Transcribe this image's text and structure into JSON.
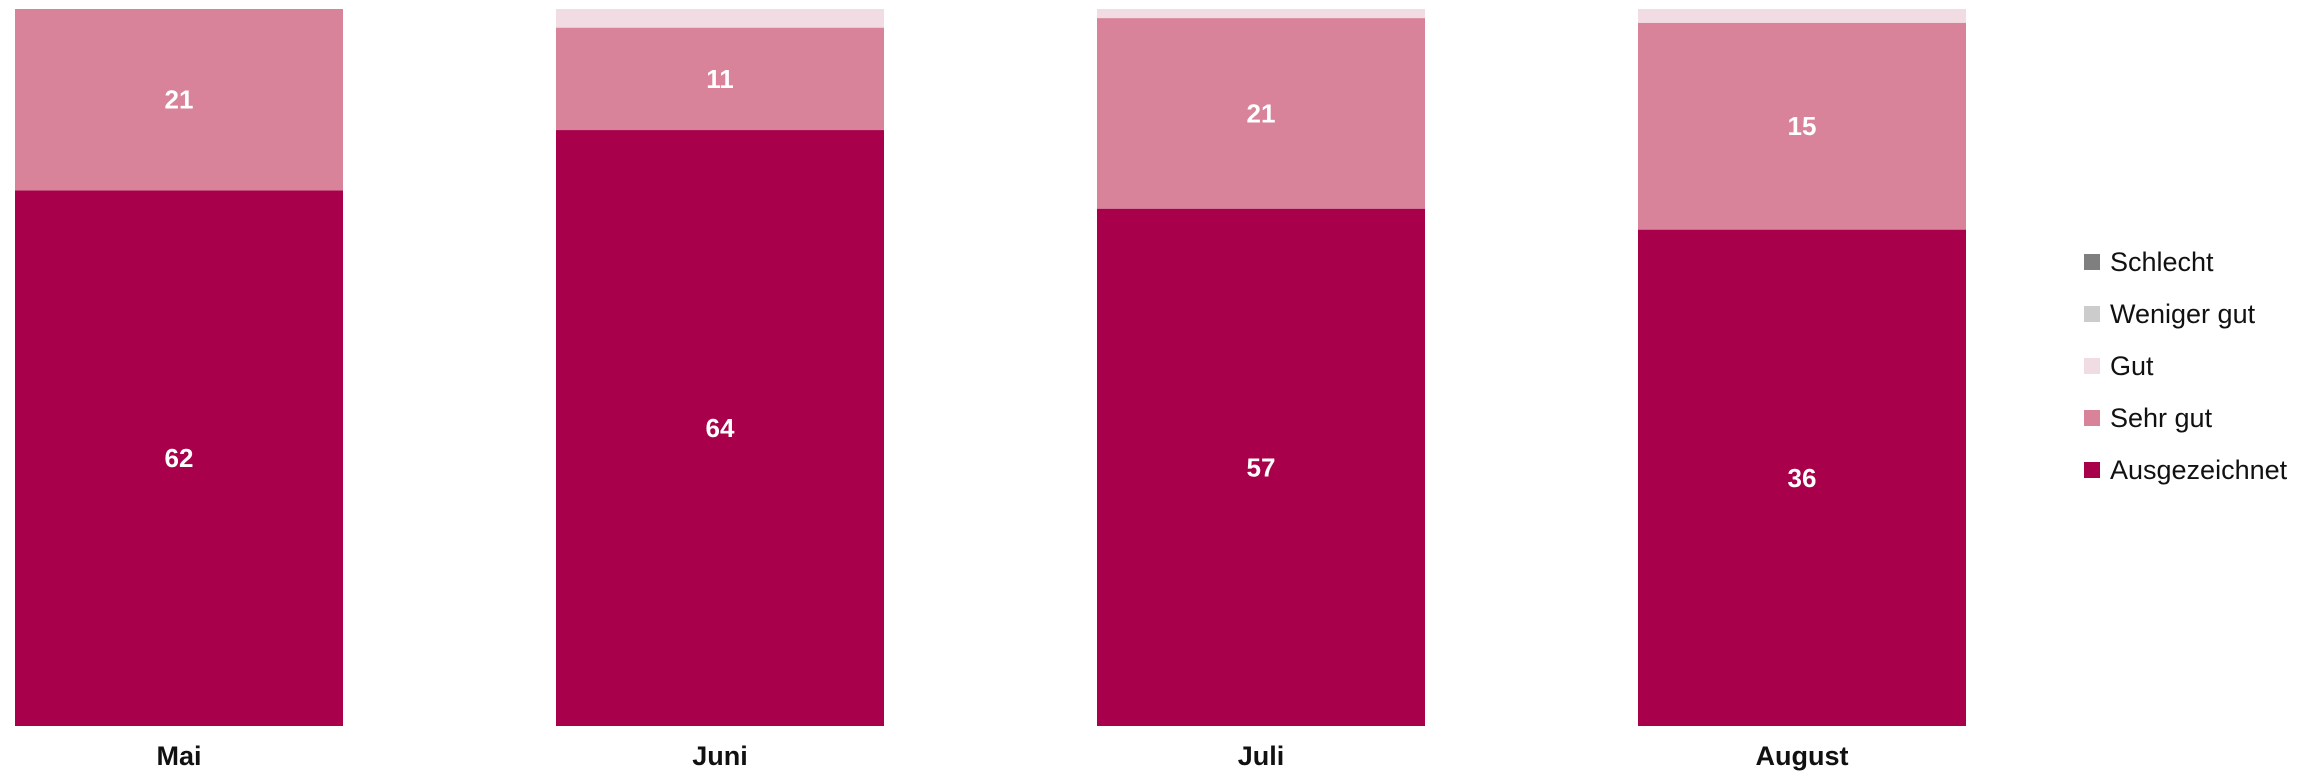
{
  "chart_data": {
    "type": "bar",
    "stacked": true,
    "normalized": true,
    "categories": [
      "Mai",
      "Juni",
      "Juli",
      "August"
    ],
    "series": [
      {
        "name": "Ausgezeichnet",
        "color": "#A8004A",
        "values": [
          62,
          64,
          57,
          36
        ],
        "labels": [
          "62",
          "64",
          "57",
          "36"
        ]
      },
      {
        "name": "Sehr gut",
        "color": "#D9839B",
        "values": [
          21,
          11,
          21,
          15
        ],
        "labels": [
          "21",
          "11",
          "21",
          "15"
        ]
      },
      {
        "name": "Gut",
        "color": "#F2DCE3",
        "values": [
          0,
          2,
          1,
          1
        ],
        "labels": [
          "",
          "",
          "",
          ""
        ]
      },
      {
        "name": "Weniger gut",
        "color": "#CCCCCC",
        "values": [
          0,
          0,
          0,
          0
        ],
        "labels": [
          "",
          "",
          "",
          ""
        ]
      },
      {
        "name": "Schlecht",
        "color": "#7F7F7F",
        "values": [
          0,
          0,
          0,
          0
        ],
        "labels": [
          "",
          "",
          "",
          ""
        ]
      }
    ],
    "legend": {
      "position": "right",
      "order": [
        "Schlecht",
        "Weniger gut",
        "Gut",
        "Sehr gut",
        "Ausgezeichnet"
      ]
    },
    "grid": false,
    "xlabel": "",
    "ylabel": ""
  }
}
